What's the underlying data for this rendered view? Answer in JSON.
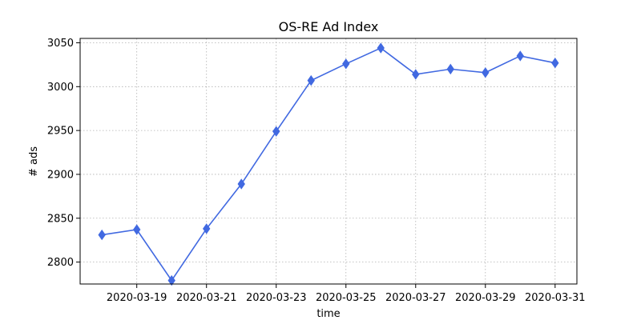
{
  "chart_data": {
    "type": "line",
    "title": "OS-RE Ad Index",
    "xlabel": "time",
    "ylabel": "# ads",
    "x": [
      "2020-03-18",
      "2020-03-19",
      "2020-03-20",
      "2020-03-21",
      "2020-03-22",
      "2020-03-23",
      "2020-03-24",
      "2020-03-25",
      "2020-03-26",
      "2020-03-27",
      "2020-03-28",
      "2020-03-29",
      "2020-03-30",
      "2020-03-31"
    ],
    "x_ticks": [
      "2020-03-19",
      "2020-03-21",
      "2020-03-23",
      "2020-03-25",
      "2020-03-27",
      "2020-03-29",
      "2020-03-31"
    ],
    "y_ticks": [
      2800,
      2850,
      2900,
      2950,
      3000,
      3050
    ],
    "xlim": [
      "2020-03-17T09:00",
      "2020-03-31T15:00"
    ],
    "ylim": [
      2775,
      3055
    ],
    "grid": true,
    "series": [
      {
        "color": "#4169e1",
        "marker": "thin-diamond",
        "values": [
          2831,
          2837,
          2779,
          2838,
          2889,
          2949,
          3007,
          3026,
          3044,
          3014,
          3020,
          3016,
          3035,
          3027
        ]
      }
    ]
  }
}
